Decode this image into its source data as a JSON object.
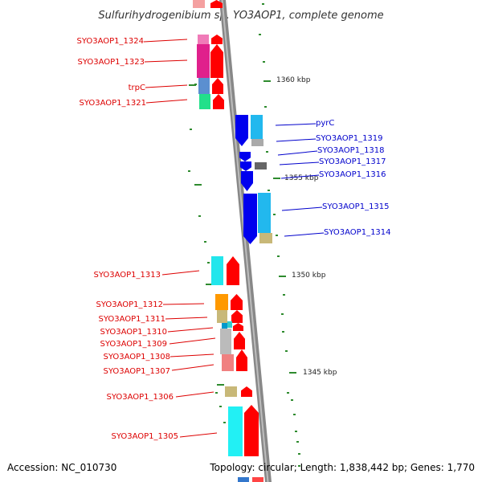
{
  "title": "Sulfurihydrogenibium sp. YO3AOP1, complete genome",
  "footer": {
    "accession": "Accession: NC_010730",
    "topology": "Topology: circular; Length: 1,838,442 bp; Genes: 1,770"
  },
  "colors": {
    "backbone": "#888888",
    "tick": "#2e8b2e",
    "forward_label": "#dd0000",
    "reverse_label": "#0000cc",
    "forward_gene": "#ff0000",
    "reverse_gene": "#0000ee"
  },
  "scale_labels": [
    "1360 kbp",
    "1355 kbp",
    "1350 kbp",
    "1345 kbp"
  ],
  "left_genes": [
    "SYO3AOP1_1324",
    "SYO3AOP1_1323",
    "trpC",
    "SYO3AOP1_1321",
    "SYO3AOP1_1313",
    "SYO3AOP1_1312",
    "SYO3AOP1_1311",
    "SYO3AOP1_1310",
    "SYO3AOP1_1309",
    "SYO3AOP1_1308",
    "SYO3AOP1_1307",
    "SYO3AOP1_1306",
    "SYO3AOP1_1305"
  ],
  "right_genes": [
    "pyrC",
    "SYO3AOP1_1319",
    "SYO3AOP1_1318",
    "SYO3AOP1_1317",
    "SYO3AOP1_1316",
    "SYO3AOP1_1315",
    "SYO3AOP1_1314"
  ]
}
